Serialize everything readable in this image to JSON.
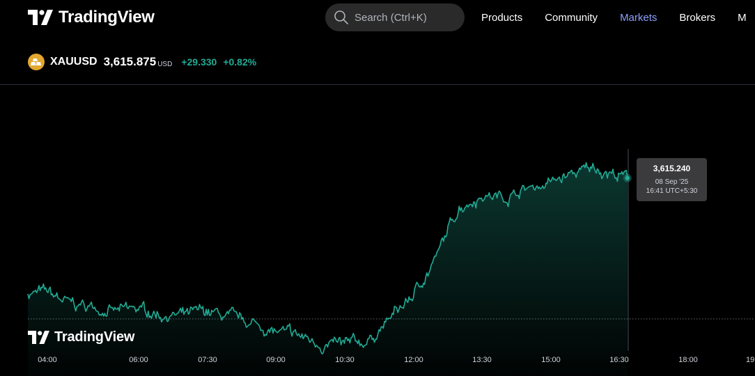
{
  "header": {
    "brand": "TradingView",
    "search": {
      "placeholder": "Search (Ctrl+K)"
    },
    "nav": [
      {
        "label": "Products",
        "active": false
      },
      {
        "label": "Community",
        "active": false
      },
      {
        "label": "Markets",
        "active": true
      },
      {
        "label": "Brokers",
        "active": false
      },
      {
        "label": "M",
        "active": false
      }
    ]
  },
  "symbol": {
    "ticker": "XAUUSD",
    "price": "3,615.875",
    "currency": "USD",
    "change": "+29.330",
    "change_percent": "+0.82%"
  },
  "tooltip": {
    "price": "3,615.240",
    "date": "08 Sep '25",
    "time": "16:41 UTC+5:30"
  },
  "watermark": "TradingView",
  "colors": {
    "background": "#000000",
    "line": "#22ab94",
    "positive": "#22ab94",
    "nav_active": "#8ea1ff",
    "tooltip_bg": "#3b3b3e"
  },
  "chart_data": {
    "type": "area",
    "x_ticks": [
      "04:00",
      "06:00",
      "07:30",
      "09:00",
      "10:30",
      "12:00",
      "13:30",
      "15:00",
      "16:30",
      "18:00",
      "19"
    ],
    "x_minutes": [
      240,
      270,
      300,
      330,
      360,
      390,
      420,
      450,
      480,
      510,
      540,
      570,
      600,
      630,
      660,
      690,
      720,
      750,
      780,
      810,
      840,
      870,
      900,
      930,
      960,
      990,
      1001
    ],
    "y": [
      3596.5,
      3594.6,
      3594.2,
      3593.4,
      3593.8,
      3593.0,
      3592.7,
      3593.4,
      3592.3,
      3591.5,
      3590.0,
      3589.4,
      3588.1,
      3587.9,
      3588.5,
      3592.3,
      3596.1,
      3602.2,
      3610.6,
      3612.5,
      3612.2,
      3613.6,
      3614.5,
      3615.9,
      3617.0,
      3615.6,
      3615.24
    ],
    "ylim": [
      3587,
      3620
    ]
  }
}
